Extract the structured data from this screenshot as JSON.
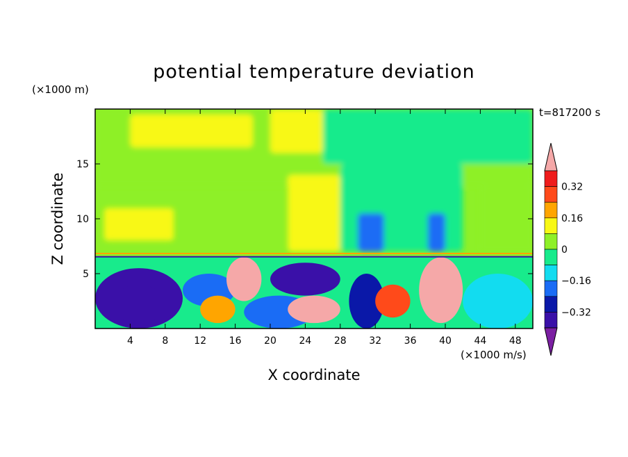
{
  "chart_data": {
    "type": "heatmap",
    "title": "potential temperature deviation",
    "xlabel": "X coordinate",
    "ylabel": "Z coordinate",
    "x_unit": "(×1000 m/s)",
    "y_unit": "(×1000 m)",
    "time_label": "t=817200 s",
    "xlim": [
      0,
      50
    ],
    "ylim": [
      0,
      20
    ],
    "x_ticks": [
      4,
      8,
      12,
      16,
      20,
      24,
      28,
      32,
      36,
      40,
      44,
      48
    ],
    "y_ticks": [
      5,
      10,
      15
    ],
    "colorbar": {
      "levels": [
        -0.4,
        -0.32,
        -0.24,
        -0.16,
        -0.08,
        0,
        0.08,
        0.16,
        0.24,
        0.32,
        0.4
      ],
      "labels": [
        "0.32",
        "0.16",
        "0",
        "−0.16",
        "−0.32"
      ],
      "label_values": [
        0.32,
        0.16,
        0,
        -0.16,
        -0.32
      ],
      "colors": [
        "#7b1fa2",
        "#3a10a8",
        "#0a18a8",
        "#1a6cf5",
        "#12dcf0",
        "#18eb8c",
        "#8ef028",
        "#f8f815",
        "#ffa500",
        "#ff4a1a",
        "#ef1c1c",
        "#f5a8a8"
      ]
    },
    "regions": [
      {
        "x": 0,
        "z": 0,
        "w": 10,
        "z2": 5.5,
        "v": -0.36
      },
      {
        "x": 2,
        "z": 0.5,
        "w": 6,
        "z2": 4,
        "v": -0.4
      },
      {
        "x": 10,
        "z": 2,
        "w": 6,
        "z2": 5,
        "v": -0.2
      },
      {
        "x": 12,
        "z": 0.5,
        "w": 4,
        "z2": 3,
        "v": 0.2
      },
      {
        "x": 15,
        "z": 2.5,
        "w": 4,
        "z2": 6.5,
        "v": 0.4
      },
      {
        "x": 17,
        "z": 0,
        "w": 8,
        "z2": 3,
        "v": -0.2
      },
      {
        "x": 20,
        "z": 3,
        "w": 8,
        "z2": 6,
        "v": -0.36
      },
      {
        "x": 22,
        "z": 0.5,
        "w": 6,
        "z2": 3,
        "v": 0.4
      },
      {
        "x": 29,
        "z": 0,
        "w": 4,
        "z2": 5,
        "v": -0.32
      },
      {
        "x": 32,
        "z": 1,
        "w": 4,
        "z2": 4,
        "v": 0.28
      },
      {
        "x": 37,
        "z": 0.5,
        "w": 5,
        "z2": 6.5,
        "v": 0.4
      },
      {
        "x": 42,
        "z": 0,
        "w": 8,
        "z2": 5,
        "v": -0.1
      }
    ]
  }
}
